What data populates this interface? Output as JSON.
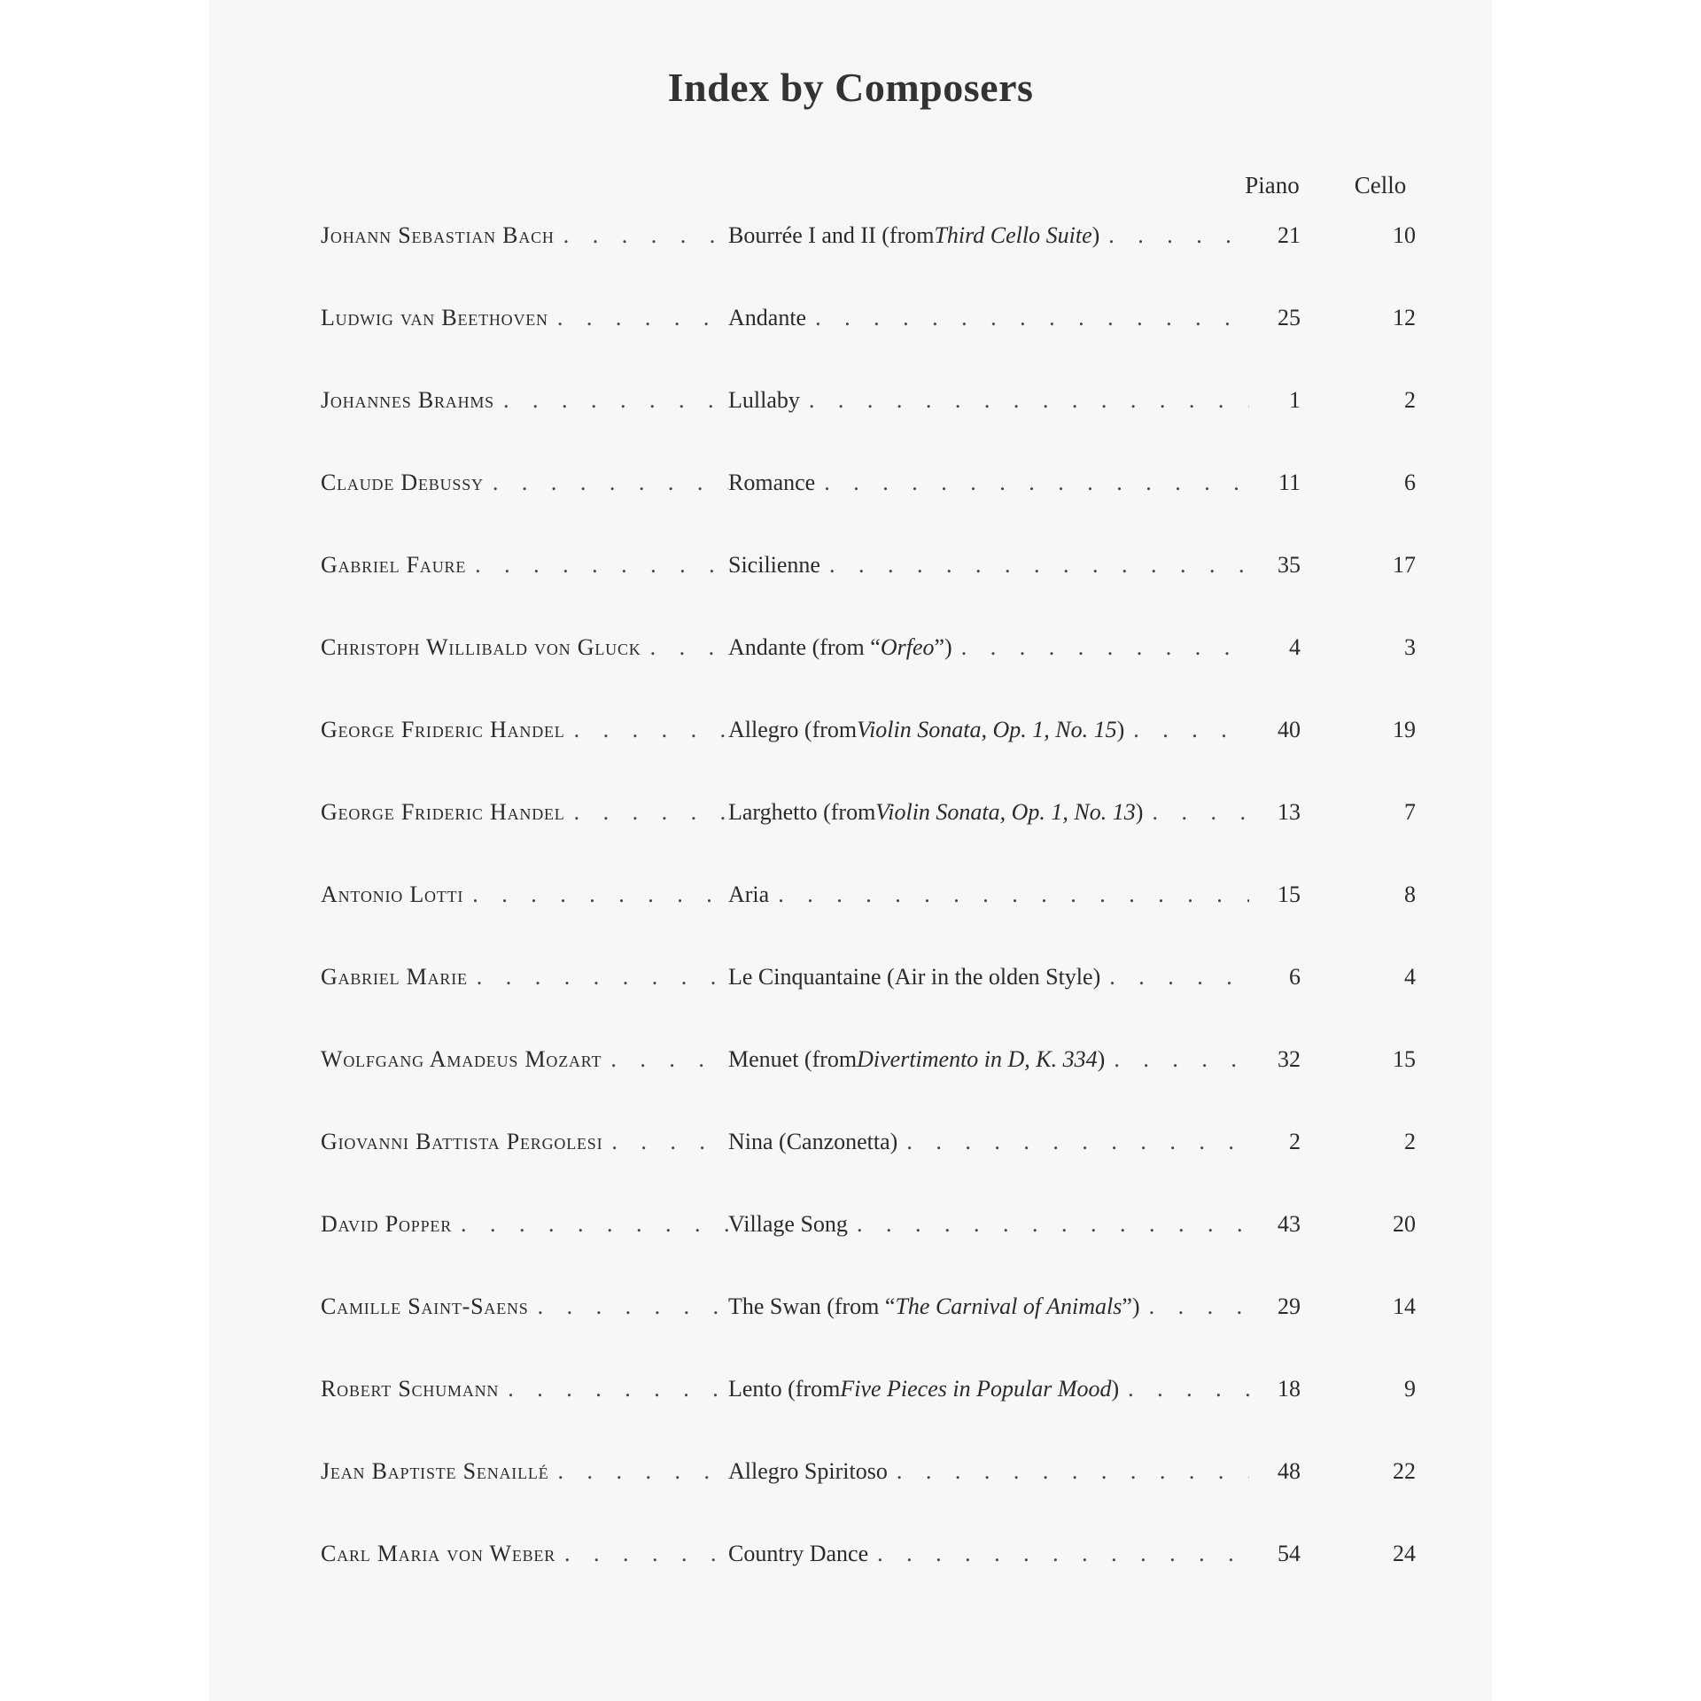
{
  "title": "Index by Composers",
  "columns": {
    "piano": "Piano",
    "cello": "Cello"
  },
  "entries": [
    {
      "composer": "Johann Sebastian Bach",
      "work": [
        {
          "text": "Bourrée I and II (from "
        },
        {
          "text": "Third Cello Suite",
          "italic": true
        },
        {
          "text": ")"
        }
      ],
      "piano": "21",
      "cello": "10"
    },
    {
      "composer": "Ludwig van Beethoven",
      "work": [
        {
          "text": "Andante"
        }
      ],
      "piano": "25",
      "cello": "12"
    },
    {
      "composer": "Johannes Brahms",
      "work": [
        {
          "text": "Lullaby"
        }
      ],
      "piano": "1",
      "cello": "2"
    },
    {
      "composer": "Claude Debussy",
      "work": [
        {
          "text": "Romance"
        }
      ],
      "piano": "11",
      "cello": "6"
    },
    {
      "composer": "Gabriel Faure",
      "work": [
        {
          "text": "Sicilienne"
        }
      ],
      "piano": "35",
      "cello": "17"
    },
    {
      "composer": "Christoph Willibald von Gluck",
      "work": [
        {
          "text": "Andante (from “"
        },
        {
          "text": "Orfeo",
          "italic": true
        },
        {
          "text": "”)"
        }
      ],
      "piano": "4",
      "cello": "3"
    },
    {
      "composer": "George Frideric Handel",
      "work": [
        {
          "text": "Allegro (from "
        },
        {
          "text": "Violin Sonata, Op. 1, No. 15",
          "italic": true
        },
        {
          "text": ")"
        }
      ],
      "piano": "40",
      "cello": "19"
    },
    {
      "composer": "George Frideric Handel",
      "work": [
        {
          "text": "Larghetto (from "
        },
        {
          "text": "Violin Sonata, Op. 1, No. 13",
          "italic": true
        },
        {
          "text": ")"
        }
      ],
      "piano": "13",
      "cello": "7"
    },
    {
      "composer": "Antonio Lotti",
      "work": [
        {
          "text": "Aria"
        }
      ],
      "piano": "15",
      "cello": "8"
    },
    {
      "composer": "Gabriel Marie",
      "work": [
        {
          "text": "Le Cinquantaine (Air in the olden Style)"
        }
      ],
      "piano": "6",
      "cello": "4"
    },
    {
      "composer": "Wolfgang Amadeus Mozart",
      "work": [
        {
          "text": "Menuet (from "
        },
        {
          "text": "Divertimento in D, K. 334",
          "italic": true
        },
        {
          "text": ")"
        }
      ],
      "piano": "32",
      "cello": "15"
    },
    {
      "composer": "Giovanni Battista Pergolesi",
      "work": [
        {
          "text": "Nina (Canzonetta)"
        }
      ],
      "piano": "2",
      "cello": "2"
    },
    {
      "composer": "David Popper",
      "work": [
        {
          "text": "Village Song"
        }
      ],
      "piano": "43",
      "cello": "20"
    },
    {
      "composer": "Camille Saint-Saens",
      "work": [
        {
          "text": "The Swan (from “"
        },
        {
          "text": "The Carnival of Animals",
          "italic": true
        },
        {
          "text": "”)"
        }
      ],
      "piano": "29",
      "cello": "14"
    },
    {
      "composer": "Robert Schumann",
      "work": [
        {
          "text": "Lento (from "
        },
        {
          "text": "Five Pieces in Popular Mood",
          "italic": true
        },
        {
          "text": ")"
        }
      ],
      "piano": "18",
      "cello": "9"
    },
    {
      "composer": "Jean Baptiste Senaillé",
      "work": [
        {
          "text": "Allegro Spiritoso"
        }
      ],
      "piano": "48",
      "cello": "22"
    },
    {
      "composer": "Carl Maria von Weber",
      "work": [
        {
          "text": "Country Dance"
        }
      ],
      "piano": "54",
      "cello": "24"
    }
  ]
}
